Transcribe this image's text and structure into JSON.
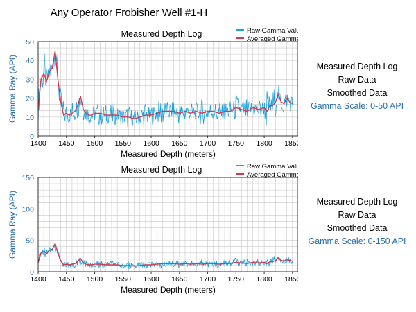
{
  "page_title": "Any Operator Frobisher Well #1-H",
  "colors": {
    "raw": "#1ba1dc",
    "avg": "#d23a4e",
    "grid": "#c8c8c8",
    "axis_label": "#2a6fae",
    "side_scale": "#2a6fae"
  },
  "side_panels": [
    {
      "lines": [
        "Measured Depth Log",
        "Raw Data",
        "Smoothed Data"
      ],
      "scale": "Gamma Scale: 0-50 API"
    },
    {
      "lines": [
        "Measured Depth Log",
        "Raw Data",
        "Smoothed Data"
      ],
      "scale": "Gamma Scale: 0-150 API"
    }
  ],
  "chart_data": [
    {
      "type": "line",
      "title": "Measured Depth Log",
      "xlabel": "Measured Depth (meters)",
      "ylabel": "Gamma Ray (API)",
      "xlim": [
        1400,
        1860
      ],
      "ylim": [
        0,
        50
      ],
      "xticks": [
        1400,
        1450,
        1500,
        1550,
        1600,
        1650,
        1700,
        1750,
        1800,
        1850
      ],
      "yticks": [
        0,
        10,
        20,
        30,
        40,
        50
      ],
      "grid": true,
      "legend_position": "top-right",
      "series": [
        {
          "name": "Raw Gamma Values",
          "role": "raw",
          "x": [
            1400,
            1405,
            1410,
            1415,
            1420,
            1425,
            1430,
            1435,
            1440,
            1445,
            1450,
            1455,
            1460,
            1465,
            1470,
            1475,
            1480,
            1485,
            1490,
            1495,
            1500,
            1510,
            1520,
            1530,
            1540,
            1550,
            1560,
            1570,
            1580,
            1590,
            1600,
            1610,
            1620,
            1630,
            1640,
            1650,
            1660,
            1670,
            1680,
            1690,
            1700,
            1710,
            1720,
            1730,
            1740,
            1750,
            1760,
            1770,
            1780,
            1790,
            1800,
            1805,
            1810,
            1815,
            1820,
            1825,
            1830,
            1835,
            1840,
            1845,
            1850
          ],
          "values": [
            8,
            28,
            44,
            25,
            38,
            34,
            50,
            22,
            16,
            6,
            14,
            9,
            16,
            10,
            19,
            27,
            12,
            14,
            8,
            13,
            11,
            16,
            9,
            14,
            11,
            9,
            13,
            8,
            11,
            15,
            9,
            13,
            18,
            11,
            15,
            9,
            17,
            10,
            14,
            8,
            16,
            12,
            9,
            15,
            11,
            19,
            13,
            10,
            17,
            12,
            15,
            3,
            21,
            11,
            14,
            24,
            17,
            13,
            22,
            15,
            19
          ]
        },
        {
          "name": "Averaged Gamma Values",
          "role": "avg",
          "x": [
            1400,
            1405,
            1410,
            1415,
            1420,
            1425,
            1430,
            1435,
            1440,
            1445,
            1450,
            1455,
            1460,
            1465,
            1470,
            1475,
            1480,
            1485,
            1490,
            1495,
            1500,
            1510,
            1520,
            1530,
            1540,
            1550,
            1560,
            1570,
            1580,
            1590,
            1600,
            1610,
            1620,
            1630,
            1640,
            1650,
            1660,
            1670,
            1680,
            1690,
            1700,
            1710,
            1720,
            1730,
            1740,
            1750,
            1760,
            1770,
            1780,
            1790,
            1800,
            1805,
            1810,
            1815,
            1820,
            1825,
            1830,
            1835,
            1840,
            1845,
            1850
          ],
          "values": [
            14,
            30,
            33,
            29,
            34,
            36,
            45,
            30,
            18,
            11,
            12,
            11,
            12,
            13,
            16,
            21,
            14,
            12,
            11,
            11,
            12,
            12,
            11,
            11,
            11,
            10,
            10,
            9,
            10,
            11,
            11,
            12,
            13,
            13,
            13,
            12,
            13,
            12,
            13,
            12,
            13,
            13,
            12,
            13,
            13,
            15,
            14,
            13,
            15,
            14,
            15,
            13,
            16,
            16,
            18,
            22,
            18,
            17,
            20,
            18,
            17
          ]
        }
      ]
    },
    {
      "type": "line",
      "title": "Measured Depth Log",
      "xlabel": "Measured Depth (meters)",
      "ylabel": "Gamma Ray (API)",
      "xlim": [
        1400,
        1860
      ],
      "ylim": [
        0,
        150
      ],
      "xticks": [
        1400,
        1450,
        1500,
        1550,
        1600,
        1650,
        1700,
        1750,
        1800,
        1850
      ],
      "yticks": [
        0,
        50,
        100,
        150
      ],
      "grid": true,
      "legend_position": "top-right",
      "series": [
        {
          "name": "Raw Gamma Values",
          "role": "raw",
          "x": [
            1400,
            1405,
            1410,
            1415,
            1420,
            1425,
            1430,
            1435,
            1440,
            1445,
            1450,
            1455,
            1460,
            1465,
            1470,
            1475,
            1480,
            1485,
            1490,
            1495,
            1500,
            1510,
            1520,
            1530,
            1540,
            1550,
            1560,
            1570,
            1580,
            1590,
            1600,
            1610,
            1620,
            1630,
            1640,
            1650,
            1660,
            1670,
            1680,
            1690,
            1700,
            1710,
            1720,
            1730,
            1740,
            1750,
            1760,
            1770,
            1780,
            1790,
            1800,
            1805,
            1810,
            1815,
            1820,
            1825,
            1830,
            1835,
            1840,
            1845,
            1850
          ],
          "values": [
            8,
            28,
            44,
            25,
            38,
            34,
            55,
            22,
            16,
            6,
            14,
            9,
            16,
            10,
            19,
            27,
            12,
            14,
            8,
            13,
            11,
            16,
            9,
            14,
            11,
            9,
            13,
            8,
            11,
            15,
            9,
            13,
            18,
            11,
            15,
            9,
            17,
            10,
            14,
            8,
            16,
            12,
            9,
            15,
            11,
            19,
            13,
            10,
            17,
            12,
            15,
            3,
            21,
            11,
            14,
            24,
            17,
            13,
            22,
            15,
            19
          ]
        },
        {
          "name": "Averaged Gamma Values",
          "role": "avg",
          "x": [
            1400,
            1405,
            1410,
            1415,
            1420,
            1425,
            1430,
            1435,
            1440,
            1445,
            1450,
            1455,
            1460,
            1465,
            1470,
            1475,
            1480,
            1485,
            1490,
            1495,
            1500,
            1510,
            1520,
            1530,
            1540,
            1550,
            1560,
            1570,
            1580,
            1590,
            1600,
            1610,
            1620,
            1630,
            1640,
            1650,
            1660,
            1670,
            1680,
            1690,
            1700,
            1710,
            1720,
            1730,
            1740,
            1750,
            1760,
            1770,
            1780,
            1790,
            1800,
            1805,
            1810,
            1815,
            1820,
            1825,
            1830,
            1835,
            1840,
            1845,
            1850
          ],
          "values": [
            14,
            30,
            33,
            29,
            34,
            36,
            45,
            30,
            18,
            11,
            12,
            11,
            12,
            13,
            16,
            21,
            14,
            12,
            11,
            11,
            12,
            12,
            11,
            11,
            11,
            10,
            10,
            9,
            10,
            11,
            11,
            12,
            13,
            13,
            13,
            12,
            13,
            12,
            13,
            12,
            13,
            13,
            12,
            13,
            13,
            15,
            14,
            13,
            15,
            14,
            15,
            13,
            16,
            16,
            18,
            22,
            18,
            17,
            20,
            18,
            17
          ]
        }
      ]
    }
  ]
}
